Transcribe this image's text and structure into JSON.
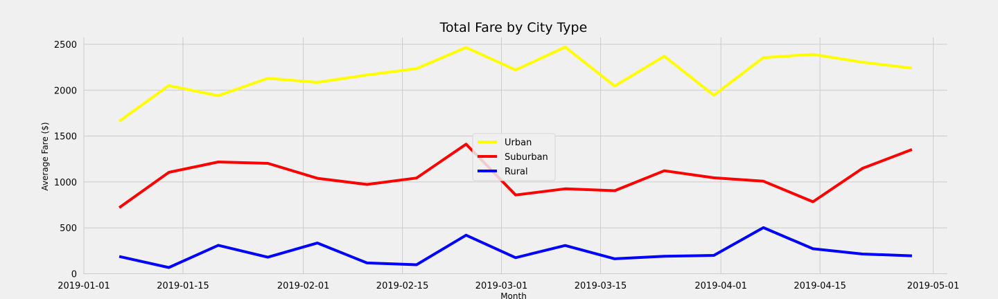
{
  "chart_data": {
    "type": "line",
    "title": "Total Fare by City Type",
    "xlabel": "Month",
    "ylabel": "Average Fare ($)",
    "x": [
      "2019-01-06",
      "2019-01-13",
      "2019-01-20",
      "2019-01-27",
      "2019-02-03",
      "2019-02-10",
      "2019-02-17",
      "2019-02-24",
      "2019-03-03",
      "2019-03-10",
      "2019-03-17",
      "2019-03-24",
      "2019-03-31",
      "2019-04-07",
      "2019-04-14",
      "2019-04-21",
      "2019-04-28"
    ],
    "xlim": [
      "2019-01-01",
      "2019-05-03"
    ],
    "xticks": [
      "2019-01-01",
      "2019-01-15",
      "2019-02-01",
      "2019-02-15",
      "2019-03-01",
      "2019-03-15",
      "2019-04-01",
      "2019-04-15",
      "2019-05-01"
    ],
    "ylim": [
      0,
      2580
    ],
    "yticks": [
      0,
      500,
      1000,
      1500,
      2000,
      2500
    ],
    "grid": true,
    "legend_position": "center",
    "series": [
      {
        "name": "Urban",
        "color": "#ffff00",
        "values": [
          1661,
          2050,
          1940,
          2130,
          2085,
          2165,
          2235,
          2465,
          2220,
          2470,
          2045,
          2370,
          1945,
          2355,
          2390,
          2305,
          2240
        ]
      },
      {
        "name": "Suburban",
        "color": "#ff0000",
        "values": [
          720,
          1105,
          1218,
          1203,
          1040,
          973,
          1043,
          1412,
          858,
          925,
          905,
          1122,
          1045,
          1008,
          784,
          1148,
          1354
        ]
      },
      {
        "name": "Rural",
        "color": "#0000ff",
        "values": [
          188,
          68,
          310,
          180,
          335,
          118,
          98,
          420,
          175,
          308,
          163,
          190,
          200,
          502,
          272,
          215,
          195
        ]
      }
    ]
  }
}
